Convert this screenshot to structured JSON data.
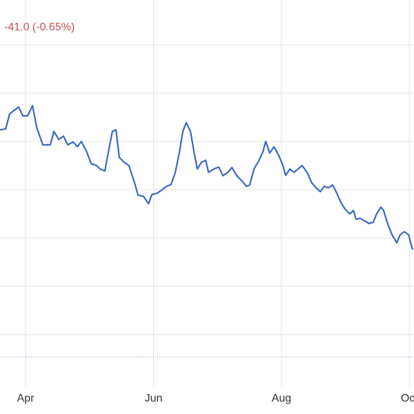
{
  "chart_data": {
    "type": "line",
    "title": "-41.0 (-0.65%)",
    "title_color": "#c9514f",
    "x": [
      -12.2,
      -9.5,
      -7.6,
      -5.6,
      -3.3,
      -1.3,
      1.0,
      3.3,
      5.3,
      8.2,
      11.8,
      13.5,
      15.8,
      18.1,
      20.1,
      22.7,
      24.7,
      26.6,
      28.9,
      31.3,
      33.9,
      35.5,
      37.8,
      39.8,
      41.4,
      43.1,
      44.7,
      47.0,
      49.3,
      52.0,
      53.6,
      56.3,
      58.6,
      60.2,
      62.8,
      65.1,
      67.1,
      69.4,
      71.4,
      73.4,
      75.0,
      76.6,
      78.6,
      80.6,
      81.9,
      83.9,
      85.9,
      87.2,
      89.8,
      92.1,
      94.1,
      96.4,
      98.4,
      100.7,
      103.0,
      105.3,
      106.9,
      108.9,
      111.2,
      113.2,
      114.5,
      116.4,
      118.4,
      120.7,
      122.7,
      124.0,
      126.0,
      128.0,
      129.9,
      131.9,
      134.2,
      136.5,
      138.5,
      140.5,
      142.4,
      144.4,
      146.4,
      148.4,
      150.3,
      152.3,
      154.6,
      156.3,
      157.6,
      159.5,
      161.5,
      163.8,
      165.8,
      167.4,
      169.4,
      170.7,
      172.7,
      174.7,
      177.0,
      178.6,
      180.6,
      182.6,
      184.5
    ],
    "series": [
      {
        "color": "#3a66c4",
        "values": [
          5.24,
          5.26,
          5.57,
          5.64,
          5.71,
          5.53,
          5.53,
          5.74,
          5.29,
          4.93,
          4.93,
          5.21,
          5.04,
          5.11,
          4.93,
          4.99,
          4.89,
          5.0,
          4.81,
          4.54,
          4.5,
          4.43,
          4.39,
          4.86,
          5.21,
          5.24,
          4.67,
          4.57,
          4.5,
          4.14,
          3.89,
          3.86,
          3.71,
          3.9,
          3.93,
          4.0,
          4.07,
          4.11,
          4.36,
          4.79,
          5.21,
          5.39,
          5.21,
          4.71,
          4.43,
          4.57,
          4.61,
          4.36,
          4.43,
          4.47,
          4.29,
          4.36,
          4.46,
          4.29,
          4.19,
          4.07,
          4.1,
          4.43,
          4.6,
          4.79,
          5.0,
          4.76,
          4.89,
          4.71,
          4.5,
          4.3,
          4.43,
          4.36,
          4.43,
          4.5,
          4.36,
          4.14,
          4.04,
          3.96,
          4.07,
          4.04,
          4.1,
          3.93,
          3.74,
          3.6,
          3.5,
          3.57,
          3.39,
          3.41,
          3.36,
          3.3,
          3.33,
          3.5,
          3.64,
          3.57,
          3.29,
          3.07,
          2.9,
          3.07,
          3.13,
          3.07,
          2.76
        ]
      }
    ],
    "xlim": [
      -12.2,
      185.2
    ],
    "xticks": [
      {
        "value": 0,
        "label": "Apr"
      },
      {
        "value": 61,
        "label": "Jun"
      },
      {
        "value": 122,
        "label": "Aug"
      },
      {
        "value": 183,
        "label": "Oct"
      }
    ],
    "ylim": [
      0,
      8
    ],
    "yticks": [
      1,
      2,
      3,
      4,
      5,
      6,
      7
    ],
    "reference_line": 0.54,
    "grid": true
  }
}
